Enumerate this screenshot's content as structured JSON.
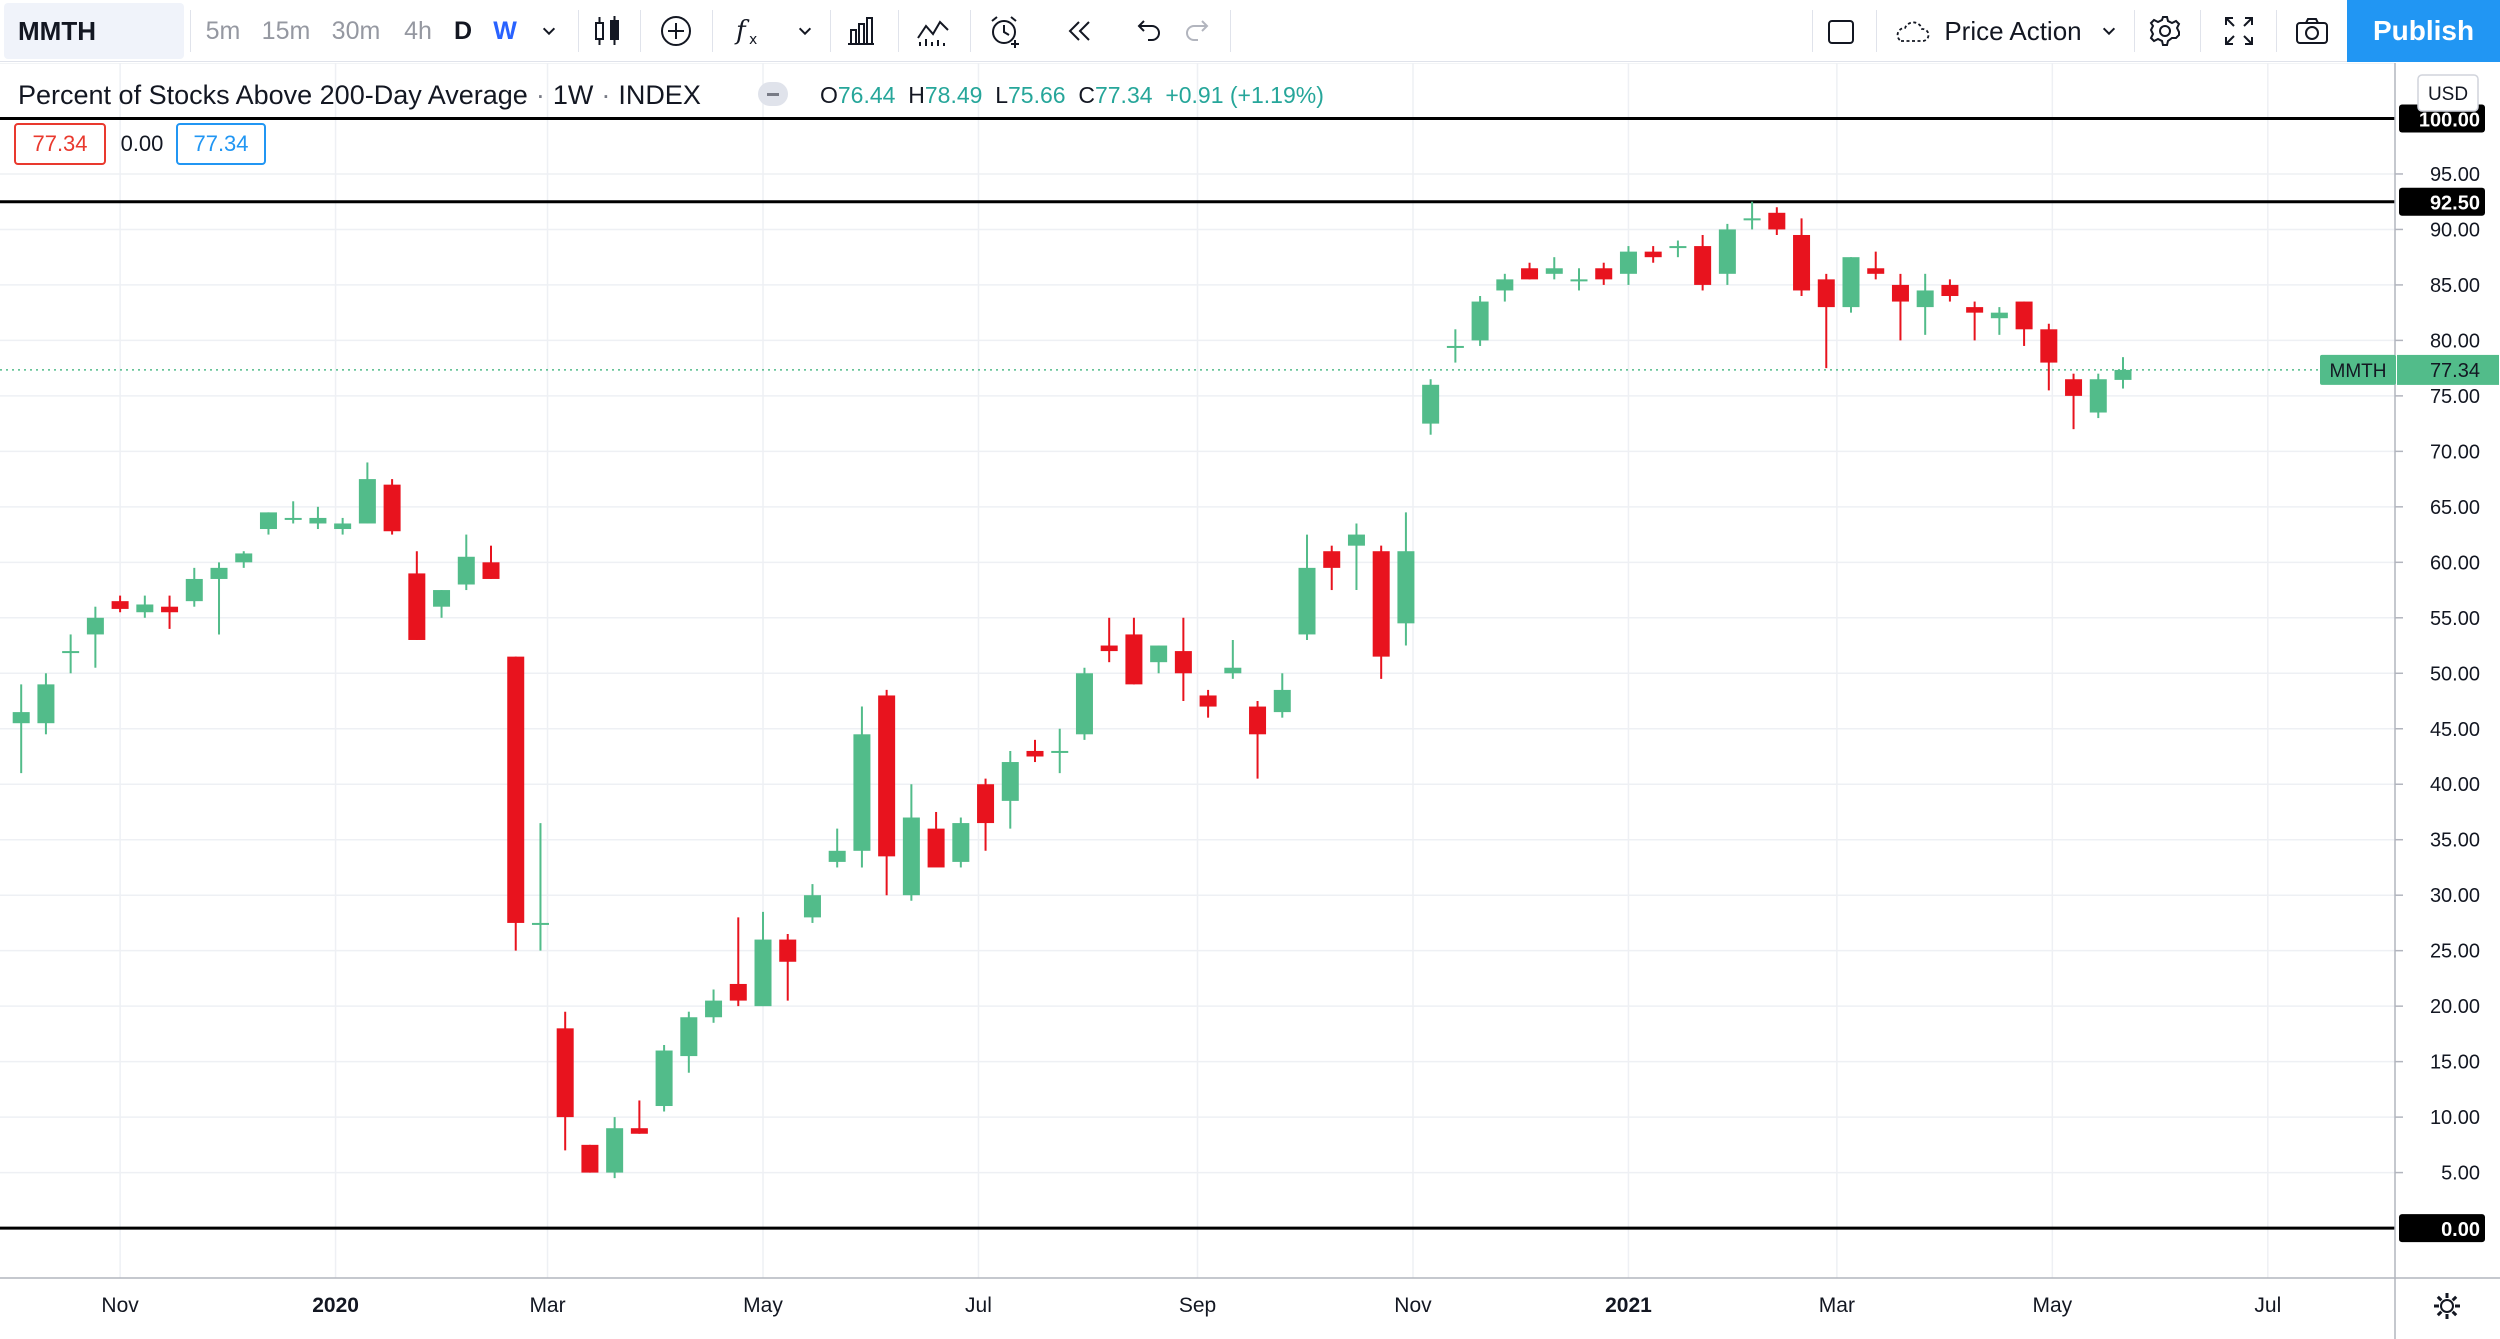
{
  "toolbar": {
    "symbol": "MMTH",
    "intervals": [
      "5m",
      "15m",
      "30m",
      "4h",
      "D",
      "W"
    ],
    "layout_name": "Price Action",
    "publish_label": "Publish",
    "icons": [
      "chevron-down-icon",
      "candles-icon",
      "add-circle-icon",
      "indicators-icon",
      "chevron-down-icon",
      "compare-icon",
      "templates-icon",
      "alert-icon",
      "replay-icon",
      "undo-icon",
      "redo-icon",
      "layout-square-icon",
      "cloud-icon",
      "settings-icon",
      "fullscreen-icon",
      "camera-icon"
    ]
  },
  "legend": {
    "title": "Percent of Stocks Above 200-Day Average",
    "interval": "1W",
    "exchange": "INDEX",
    "o_label": "O",
    "o": "76.44",
    "h_label": "H",
    "h": "78.49",
    "l_label": "L",
    "l": "75.66",
    "c_label": "C",
    "c": "77.34",
    "change": "+0.91 (+1.19%)",
    "open_box": "77.34",
    "mid_box": "0.00",
    "close_box": "77.34"
  },
  "colors": {
    "up": "#52bc8a",
    "down": "#e8131e",
    "accent": "#2196f3",
    "hline": "#000000"
  },
  "chart_data": {
    "type": "candlestick",
    "symbol": "MMTH",
    "currency": "USD",
    "y_range": [
      -4.5,
      105
    ],
    "y_ticks": [
      5,
      10,
      15,
      20,
      25,
      30,
      35,
      40,
      45,
      50,
      55,
      60,
      65,
      70,
      75,
      80,
      85,
      90,
      95
    ],
    "horizontal_lines": [
      100,
      92.5,
      0
    ],
    "horizontal_line_labels": [
      "100.00",
      "92.50",
      "0.00"
    ],
    "last_price": 77.34,
    "last_price_label": "77.34",
    "x_labels": [
      "Nov",
      "2020",
      "Mar",
      "May",
      "Jul",
      "Sep",
      "Nov",
      "2021",
      "Mar",
      "May",
      "Jul"
    ],
    "date_range": [
      "2019-09-28",
      "2021-08-06"
    ],
    "candles": [
      [
        "2019-10-04",
        45.5,
        49.0,
        41.0,
        46.5
      ],
      [
        "2019-10-11",
        45.5,
        50.0,
        44.5,
        49.0
      ],
      [
        "2019-10-18",
        52.0,
        53.5,
        50.0,
        52.0
      ],
      [
        "2019-10-25",
        53.5,
        56.0,
        50.5,
        55.0
      ],
      [
        "2019-11-01",
        56.5,
        57.0,
        55.5,
        55.8
      ],
      [
        "2019-11-08",
        55.5,
        57.0,
        55.0,
        56.2
      ],
      [
        "2019-11-15",
        56.0,
        57.0,
        54.0,
        55.5
      ],
      [
        "2019-11-22",
        56.5,
        59.5,
        56.0,
        58.5
      ],
      [
        "2019-11-29",
        58.5,
        60.0,
        53.5,
        59.5
      ],
      [
        "2019-12-06",
        60.0,
        61.0,
        59.5,
        60.8
      ],
      [
        "2019-12-13",
        63.0,
        64.5,
        62.5,
        64.5
      ],
      [
        "2019-12-20",
        64.0,
        65.5,
        63.5,
        64.0
      ],
      [
        "2019-12-27",
        63.5,
        65.0,
        63.0,
        64.0
      ],
      [
        "2020-01-03",
        63.0,
        64.0,
        62.5,
        63.5
      ],
      [
        "2020-01-10",
        63.5,
        69.0,
        63.5,
        67.5
      ],
      [
        "2020-01-17",
        67.0,
        67.5,
        62.5,
        62.8
      ],
      [
        "2020-01-24",
        59.0,
        61.0,
        53.0,
        53.0
      ],
      [
        "2020-01-31",
        56.0,
        57.5,
        55.0,
        57.5
      ],
      [
        "2020-02-07",
        58.0,
        62.5,
        57.5,
        60.5
      ],
      [
        "2020-02-14",
        60.0,
        61.5,
        58.5,
        58.5
      ],
      [
        "2020-02-21",
        51.5,
        51.5,
        25.0,
        27.5
      ],
      [
        "2020-02-28",
        27.5,
        36.5,
        25.0,
        27.5
      ],
      [
        "2020-03-06",
        18.0,
        19.5,
        7.0,
        10.0
      ],
      [
        "2020-03-13",
        7.5,
        7.5,
        5.0,
        5.0
      ],
      [
        "2020-03-20",
        5.0,
        10.0,
        4.5,
        9.0
      ],
      [
        "2020-03-27",
        9.0,
        11.5,
        8.5,
        8.5
      ],
      [
        "2020-04-03",
        11.0,
        16.5,
        10.5,
        16.0
      ],
      [
        "2020-04-10",
        15.5,
        19.5,
        14.0,
        19.0
      ],
      [
        "2020-04-17",
        19.0,
        21.5,
        18.5,
        20.5
      ],
      [
        "2020-04-24",
        22.0,
        28.0,
        20.0,
        20.5
      ],
      [
        "2020-05-01",
        20.0,
        28.5,
        20.0,
        26.0
      ],
      [
        "2020-05-08",
        26.0,
        26.5,
        20.5,
        24.0
      ],
      [
        "2020-05-15",
        28.0,
        31.0,
        27.5,
        30.0
      ],
      [
        "2020-05-22",
        33.0,
        36.0,
        32.5,
        34.0
      ],
      [
        "2020-05-29",
        34.0,
        47.0,
        32.5,
        44.5
      ],
      [
        "2020-06-05",
        48.0,
        48.5,
        30.0,
        33.5
      ],
      [
        "2020-06-12",
        30.0,
        40.0,
        29.5,
        37.0
      ],
      [
        "2020-06-19",
        36.0,
        37.5,
        33.0,
        32.5
      ],
      [
        "2020-06-26",
        33.0,
        37.0,
        32.5,
        36.5
      ],
      [
        "2020-07-03",
        40.0,
        40.5,
        34.0,
        36.5
      ],
      [
        "2020-07-10",
        38.5,
        43.0,
        36.0,
        42.0
      ],
      [
        "2020-07-17",
        43.0,
        44.0,
        42.0,
        42.5
      ],
      [
        "2020-07-24",
        43.0,
        45.0,
        41.0,
        43.0
      ],
      [
        "2020-07-31",
        44.5,
        50.5,
        44.0,
        50.0
      ],
      [
        "2020-08-07",
        52.5,
        55.0,
        51.0,
        52.0
      ],
      [
        "2020-08-14",
        53.5,
        55.0,
        49.0,
        49.0
      ],
      [
        "2020-08-21",
        51.0,
        52.5,
        50.0,
        52.5
      ],
      [
        "2020-08-28",
        52.0,
        55.0,
        47.5,
        50.0
      ],
      [
        "2020-09-04",
        48.0,
        48.5,
        46.0,
        47.0
      ],
      [
        "2020-09-11",
        50.0,
        53.0,
        49.5,
        50.5
      ],
      [
        "2020-09-18",
        47.0,
        47.5,
        40.5,
        44.5
      ],
      [
        "2020-09-25",
        46.5,
        50.0,
        46.0,
        48.5
      ],
      [
        "2020-10-02",
        53.5,
        62.5,
        53.0,
        59.5
      ],
      [
        "2020-10-09",
        61.0,
        61.5,
        57.5,
        59.5
      ],
      [
        "2020-10-16",
        61.5,
        63.5,
        57.5,
        62.5
      ],
      [
        "2020-10-23",
        61.0,
        61.5,
        49.5,
        51.5
      ],
      [
        "2020-10-30",
        54.5,
        64.5,
        52.5,
        61.0
      ],
      [
        "2020-11-06",
        72.5,
        76.5,
        71.5,
        76.0
      ],
      [
        "2020-11-13",
        79.5,
        81.0,
        78.0,
        79.5
      ],
      [
        "2020-11-20",
        80.0,
        84.0,
        79.5,
        83.5
      ],
      [
        "2020-11-27",
        84.5,
        86.0,
        83.5,
        85.5
      ],
      [
        "2020-12-04",
        86.5,
        87.0,
        85.5,
        85.5
      ],
      [
        "2020-12-11",
        86.0,
        87.5,
        85.5,
        86.5
      ],
      [
        "2020-12-18",
        85.5,
        86.5,
        84.5,
        85.5
      ],
      [
        "2020-12-25",
        86.5,
        87.0,
        85.0,
        85.5
      ],
      [
        "2021-01-01",
        86.0,
        88.5,
        85.0,
        88.0
      ],
      [
        "2021-01-08",
        88.0,
        88.5,
        87.0,
        87.5
      ],
      [
        "2021-01-15",
        88.5,
        89.0,
        87.5,
        88.5
      ],
      [
        "2021-01-22",
        88.5,
        89.5,
        84.5,
        85.0
      ],
      [
        "2021-01-29",
        86.0,
        90.5,
        85.0,
        90.0
      ],
      [
        "2021-02-05",
        91.0,
        92.5,
        90.0,
        91.0
      ],
      [
        "2021-02-12",
        91.5,
        92.0,
        89.5,
        90.0
      ],
      [
        "2021-02-19",
        89.5,
        91.0,
        84.0,
        84.5
      ],
      [
        "2021-02-26",
        85.5,
        86.0,
        77.5,
        83.0
      ],
      [
        "2021-03-05",
        83.0,
        87.5,
        82.5,
        87.5
      ],
      [
        "2021-03-12",
        86.5,
        88.0,
        85.5,
        86.0
      ],
      [
        "2021-03-19",
        85.0,
        86.0,
        80.0,
        83.5
      ],
      [
        "2021-03-26",
        83.0,
        86.0,
        80.5,
        84.5
      ],
      [
        "2021-04-02",
        85.0,
        85.5,
        83.5,
        84.0
      ],
      [
        "2021-04-09",
        83.0,
        83.5,
        80.0,
        82.5
      ],
      [
        "2021-04-16",
        82.0,
        83.0,
        80.5,
        82.5
      ],
      [
        "2021-04-23",
        83.5,
        83.5,
        79.5,
        81.0
      ],
      [
        "2021-04-30",
        81.0,
        81.5,
        75.5,
        78.0
      ],
      [
        "2021-05-07",
        76.5,
        77.0,
        72.0,
        75.0
      ],
      [
        "2021-05-14",
        73.5,
        77.0,
        73.0,
        76.5
      ],
      [
        "2021-05-21",
        76.44,
        78.49,
        75.66,
        77.34
      ]
    ]
  }
}
